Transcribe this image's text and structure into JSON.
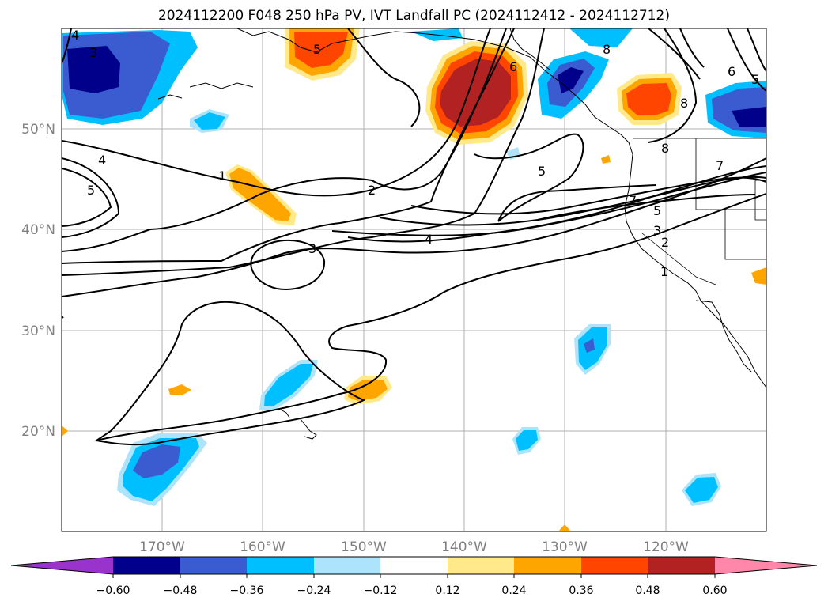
{
  "title": "2024112200 F048 250 hPa PV, IVT Landfall PC (2024112412 - 2024112712)",
  "lat_labels": [
    "50°N",
    "40°N",
    "30°N",
    "20°N"
  ],
  "lon_labels": [
    "170°W",
    "160°W",
    "150°W",
    "140°W",
    "130°W",
    "120°W"
  ],
  "colorbar": {
    "ticks": [
      "−0.60",
      "−0.48",
      "−0.36",
      "−0.24",
      "−0.12",
      "0.12",
      "0.24",
      "0.36",
      "0.48",
      "0.60"
    ],
    "colors": [
      "#9933cc",
      "#00008b",
      "#3b5bd1",
      "#00bfff",
      "#aee4fb",
      "#ffffff",
      "#ffe98a",
      "#ffa500",
      "#ff4500",
      "#b22222",
      "#ff88aa"
    ]
  },
  "contour_labels": [
    "4",
    "3",
    "4",
    "5",
    "1",
    "2",
    "3",
    "4",
    "5",
    "7",
    "5",
    "3",
    "2",
    "1",
    "8",
    "6",
    "5",
    "8",
    "8",
    "6",
    "5",
    "7"
  ]
}
